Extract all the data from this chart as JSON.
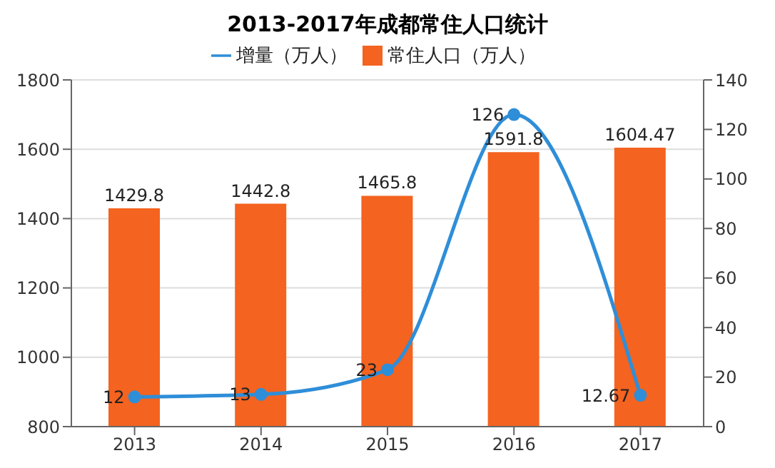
{
  "chart_data": {
    "type": "bar",
    "title": "2013-2017年成都常住人口统计",
    "categories": [
      "2013",
      "2014",
      "2015",
      "2016",
      "2017"
    ],
    "series": [
      {
        "name": "常住人口（万人）",
        "color": "#f4631f",
        "values": [
          1429.8,
          1442.8,
          1465.8,
          1591.8,
          1604.47
        ]
      },
      {
        "name": "增量（万人）",
        "type": "line",
        "axis": "y2",
        "color": "#2f8ed8",
        "values": [
          12,
          13,
          23,
          126,
          12.67
        ]
      }
    ],
    "ylim": [
      800,
      1800
    ],
    "yticks": [
      800,
      1000,
      1200,
      1400,
      1600,
      1800
    ],
    "y2lim": [
      0,
      140
    ],
    "y2ticks": [
      0,
      20,
      40,
      60,
      80,
      100,
      120,
      140
    ],
    "data_labels": true,
    "grid": "y",
    "legend": "top",
    "marker": "circle"
  }
}
